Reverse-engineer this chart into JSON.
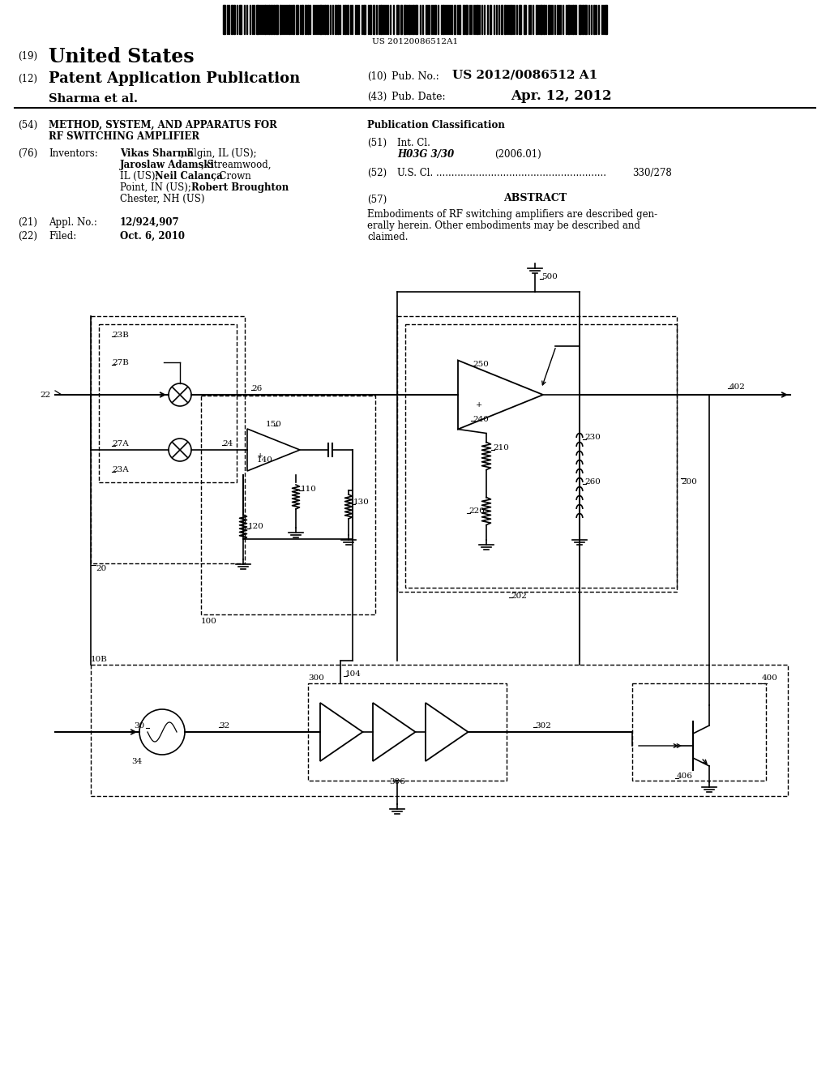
{
  "bg_color": "#ffffff",
  "barcode_text": "US 20120086512A1",
  "header_country": "United States",
  "header_kind": "Patent Application Publication",
  "header_applicant": "Sharma et al.",
  "header_pub_no_label": "(10) Pub. No.:",
  "header_pub_no_value": "US 2012/0086512 A1",
  "header_pub_date_label": "(43) Pub. Date:",
  "header_pub_date_value": "Apr. 12, 2012",
  "s54_label": "(54)",
  "s54_title1": "METHOD, SYSTEM, AND APPARATUS FOR",
  "s54_title2": "RF SWITCHING AMPLIFIER",
  "s76_label": "(76)",
  "s76_sublabel": "Inventors:",
  "inv1_bold": "Vikas Sharma",
  "inv1_rest": ", Elgin, IL (US);",
  "inv2_bold": "Jaroslaw Adamski",
  "inv2_rest": ", Streamwood,",
  "inv3_text": "IL (US); ",
  "inv3_bold": "Neil Calanca",
  "inv3_rest": ", Crown",
  "inv4_text": "Point, IN (US); ",
  "inv4_bold": "Robert Broughton",
  "inv5_text": "Chester, NH (US)",
  "s21_label": "(21)",
  "s21_sublabel": "Appl. No.:",
  "s21_value": "12/924,907",
  "s22_label": "(22)",
  "s22_sublabel": "Filed:",
  "s22_value": "Oct. 6, 2010",
  "pub_class_label": "Publication Classification",
  "s51_label": "(51)",
  "s51_sublabel": "Int. Cl.",
  "s51_class": "H03G 3/30",
  "s51_date": "(2006.01)",
  "s52_label": "(52)",
  "s52_text": "U.S. Cl. ........................................................",
  "s52_value": "330/278",
  "s57_label": "(57)",
  "abstract_label": "ABSTRACT",
  "abstract_text1": "Embodiments of RF switching amplifiers are described gen-",
  "abstract_text2": "erally herein. Other embodiments may be described and",
  "abstract_text3": "claimed."
}
